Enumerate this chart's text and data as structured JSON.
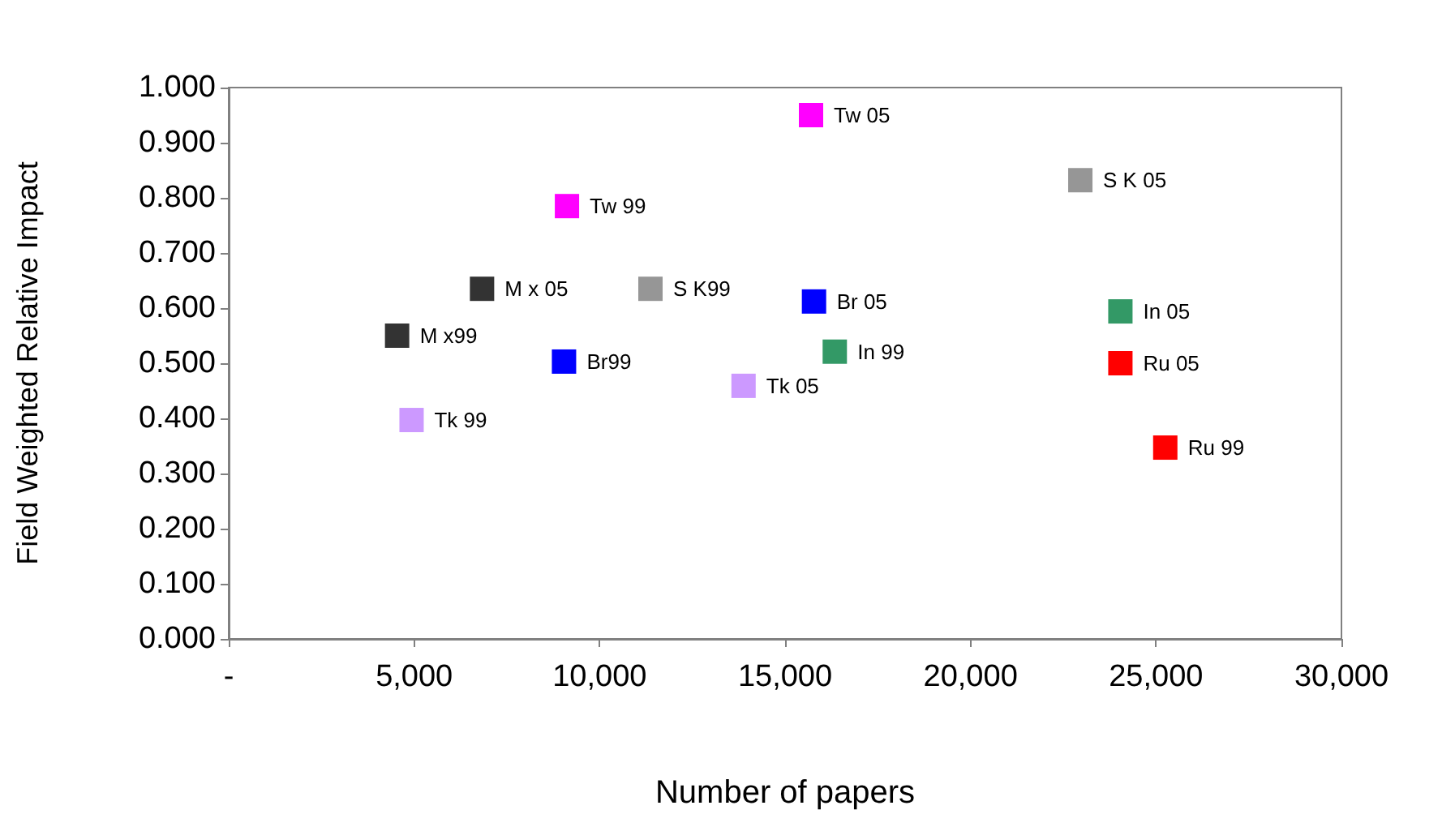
{
  "chart_data": {
    "type": "scatter",
    "xlabel": "Number of papers",
    "ylabel": "Field Weighted Relative Impact",
    "marker": "square",
    "grid": false,
    "xlim": [
      0,
      30000
    ],
    "xticks": [
      {
        "value": 0,
        "label": "-"
      },
      {
        "value": 5000,
        "label": "5,000"
      },
      {
        "value": 10000,
        "label": "10,000"
      },
      {
        "value": 15000,
        "label": "15,000"
      },
      {
        "value": 20000,
        "label": "20,000"
      },
      {
        "value": 25000,
        "label": "25,000"
      },
      {
        "value": 30000,
        "label": "30,000"
      }
    ],
    "ylim": [
      0,
      1
    ],
    "yticks": [
      {
        "value": 0,
        "label": "0.000"
      },
      {
        "value": 0.1,
        "label": "0.100"
      },
      {
        "value": 0.2,
        "label": "0.200"
      },
      {
        "value": 0.3,
        "label": "0.300"
      },
      {
        "value": 0.4,
        "label": "0.400"
      },
      {
        "value": 0.5,
        "label": "0.500"
      },
      {
        "value": 0.6,
        "label": "0.600"
      },
      {
        "value": 0.7,
        "label": "0.700"
      },
      {
        "value": 0.8,
        "label": "0.800"
      },
      {
        "value": 0.9,
        "label": "0.900"
      },
      {
        "value": 1,
        "label": "1.000"
      }
    ],
    "series": [
      {
        "color": "#ff00ff",
        "x": [
          9120,
          15700
        ],
        "values": [
          0.785,
          0.95
        ]
      },
      {
        "color": "#969696",
        "x": [
          11370,
          22960
        ],
        "values": [
          0.635,
          0.832
        ]
      },
      {
        "color": "#333333",
        "x": [
          4540,
          6830
        ],
        "values": [
          0.55,
          0.635
        ]
      },
      {
        "color": "#0000ff",
        "x": [
          9040,
          15780
        ],
        "values": [
          0.503,
          0.612
        ]
      },
      {
        "color": "#339966",
        "x": [
          16340,
          24040
        ],
        "values": [
          0.521,
          0.594
        ]
      },
      {
        "color": "#cc99ff",
        "x": [
          4930,
          13880
        ],
        "values": [
          0.397,
          0.459
        ]
      },
      {
        "color": "#ff0000",
        "x": [
          25250,
          24040
        ],
        "values": [
          0.347,
          0.5
        ]
      }
    ],
    "annotations": [
      {
        "text": "Tw 99",
        "x": 9120,
        "y": 0.785
      },
      {
        "text": "Tw 05",
        "x": 15700,
        "y": 0.95
      },
      {
        "text": "S K99",
        "x": 11370,
        "y": 0.635
      },
      {
        "text": "S K 05",
        "x": 22960,
        "y": 0.832
      },
      {
        "text": "M x99",
        "x": 4540,
        "y": 0.55
      },
      {
        "text": "M x 05",
        "x": 6830,
        "y": 0.635
      },
      {
        "text": "Br99",
        "x": 9040,
        "y": 0.503
      },
      {
        "text": "Br 05",
        "x": 15780,
        "y": 0.612
      },
      {
        "text": "In 99",
        "x": 16340,
        "y": 0.521
      },
      {
        "text": "In 05",
        "x": 24040,
        "y": 0.594
      },
      {
        "text": "Tk 99",
        "x": 4930,
        "y": 0.397
      },
      {
        "text": "Tk 05",
        "x": 13880,
        "y": 0.459
      },
      {
        "text": "Ru 99",
        "x": 25250,
        "y": 0.347
      },
      {
        "text": "Ru 05",
        "x": 24040,
        "y": 0.5
      }
    ]
  }
}
